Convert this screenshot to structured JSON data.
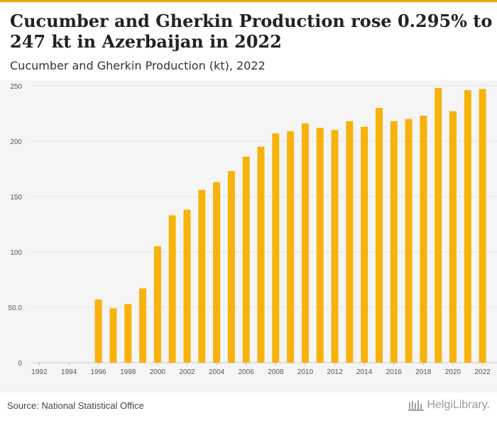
{
  "title": "Cucumber and Gherkin Production rose 0.295% to 247 kt in Azerbaijan in 2022",
  "subtitle": "Cucumber and Gherkin Production (kt), 2022",
  "source": "Source: National Statistical Office",
  "logo_text": "HelgiLibrary.",
  "colors": {
    "bar": "#f7b20c",
    "accent": "#f2a900",
    "grid": "#e2e2e2",
    "plot_bg": "#f5f5f5"
  },
  "chart_data": {
    "type": "bar",
    "categories": [
      "1992",
      "1993",
      "1994",
      "1995",
      "1996",
      "1997",
      "1998",
      "1999",
      "2000",
      "2001",
      "2002",
      "2003",
      "2004",
      "2005",
      "2006",
      "2007",
      "2008",
      "2009",
      "2010",
      "2011",
      "2012",
      "2013",
      "2014",
      "2015",
      "2016",
      "2017",
      "2018",
      "2019",
      "2020",
      "2021",
      "2022"
    ],
    "values": [
      null,
      null,
      null,
      null,
      57,
      49,
      53,
      67,
      105,
      133,
      138,
      156,
      163,
      173,
      186,
      195,
      207,
      209,
      216,
      212,
      210,
      218,
      213,
      230,
      218,
      220,
      223,
      248,
      227,
      246,
      247
    ],
    "xticks": [
      "1992",
      "1994",
      "1996",
      "1998",
      "2000",
      "2002",
      "2004",
      "2006",
      "2008",
      "2010",
      "2012",
      "2014",
      "2016",
      "2018",
      "2020",
      "2022"
    ],
    "yticks": [
      "0",
      "50.0",
      "100",
      "150",
      "200",
      "250"
    ],
    "ylim": [
      0,
      255
    ],
    "grid": true
  }
}
